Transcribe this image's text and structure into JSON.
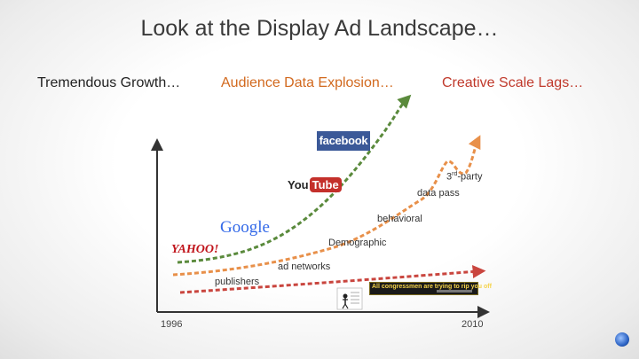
{
  "title": "Look at the Display Ad Landscape…",
  "columns": {
    "left": "Tremendous Growth…",
    "middle": "Audience Data Explosion…",
    "right": "Creative Scale Lags…"
  },
  "axis": {
    "start": "1996",
    "end": "2010"
  },
  "logos": {
    "facebook": "facebook",
    "youtube_you": "You",
    "youtube_tube": "Tube",
    "google": "Google",
    "yahoo": "YAHOO!"
  },
  "stages": {
    "third_party_num": "3",
    "third_party_sup": "rd",
    "third_party_text": "-party",
    "data_pass": "data pass",
    "behavioral": "behavioral",
    "demographic": "Demographic",
    "ad_networks": "ad networks",
    "publishers": "publishers"
  },
  "ad_banner_text": "All congressmen are trying to rip you off",
  "colors": {
    "growth": "#5a8a3c",
    "audience": "#e8904a",
    "creative": "#c9453e",
    "axis": "#333333"
  }
}
